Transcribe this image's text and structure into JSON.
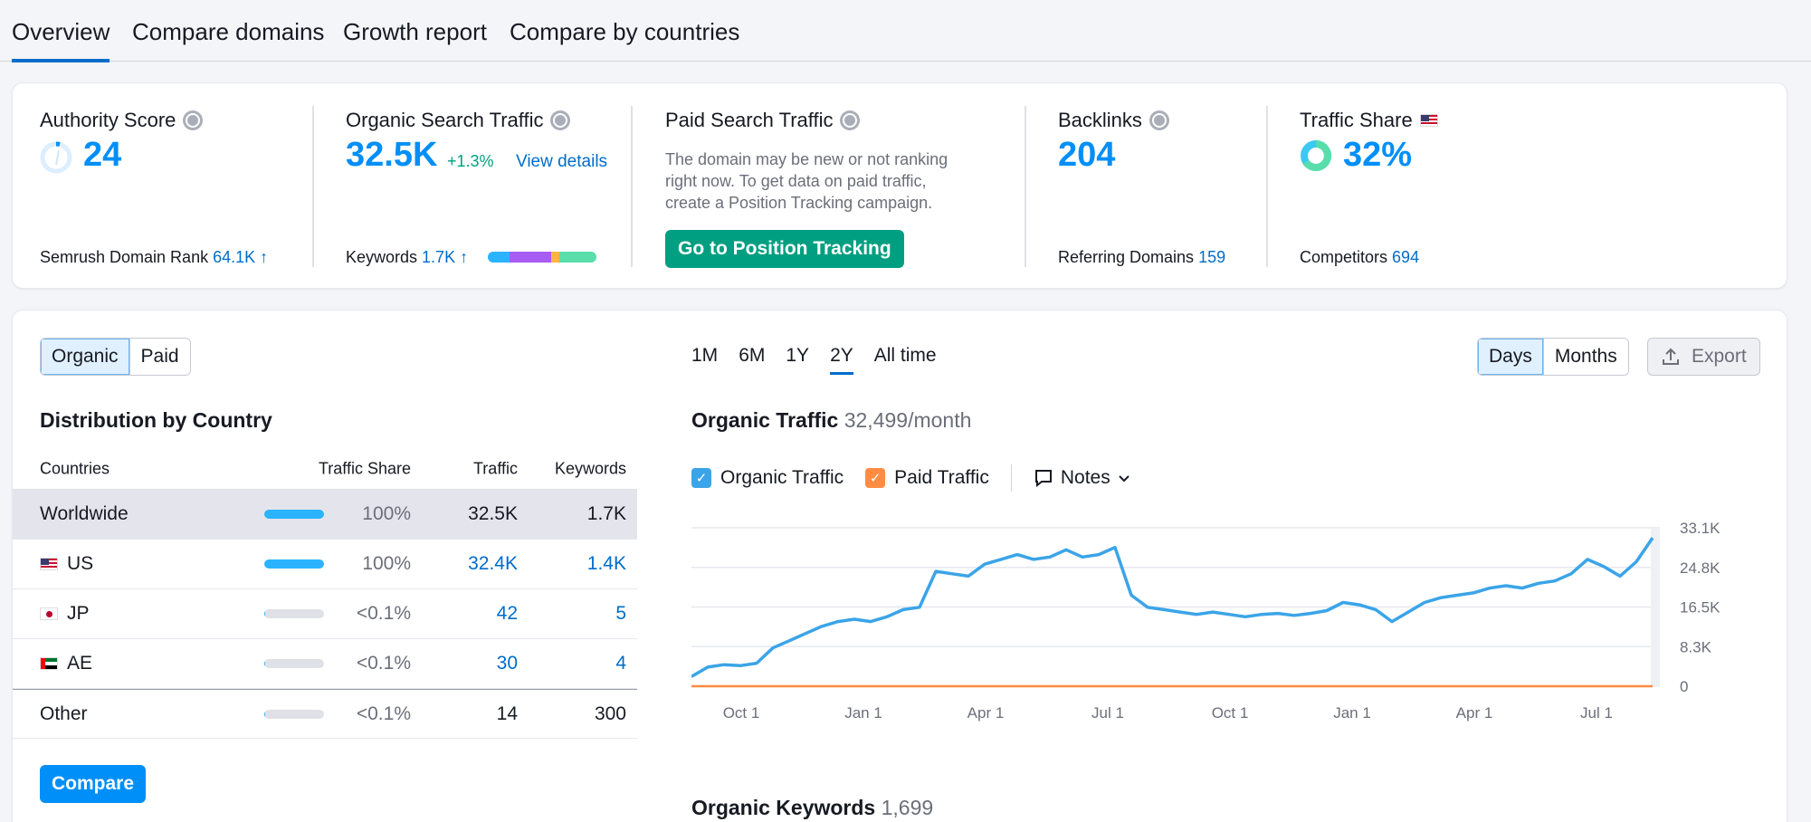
{
  "tabs": [
    "Overview",
    "Compare domains",
    "Growth report",
    "Compare by countries"
  ],
  "metrics": {
    "authority": {
      "title": "Authority Score",
      "value": "24",
      "rank_label": "Semrush Domain Rank",
      "rank_value": "64.1K ↑"
    },
    "organic": {
      "title": "Organic Search Traffic",
      "value": "32.5K",
      "change": "+1.3%",
      "link": "View details",
      "keywords_label": "Keywords",
      "keywords_value": "1.7K ↑"
    },
    "paid": {
      "title": "Paid Search Traffic",
      "description": "The domain may be new or not ranking right now. To get data on paid traffic, create a Position Tracking campaign.",
      "button": "Go to Position Tracking"
    },
    "backlinks": {
      "title": "Backlinks",
      "value": "204",
      "ref_label": "Referring Domains",
      "ref_value": "159"
    },
    "share": {
      "title": "Traffic Share",
      "value": "32%",
      "comp_label": "Competitors",
      "comp_value": "694"
    }
  },
  "toggle": {
    "organic": "Organic",
    "paid": "Paid"
  },
  "distribution": {
    "title": "Distribution by Country",
    "headers": {
      "countries": "Countries",
      "share": "Traffic Share",
      "traffic": "Traffic",
      "keywords": "Keywords"
    },
    "rows": [
      {
        "name": "Worldwide",
        "share": "100%",
        "traffic": "32.5K",
        "keywords": "1.7K",
        "fill": 1.0
      },
      {
        "name": "US",
        "share": "100%",
        "traffic": "32.4K",
        "keywords": "1.4K",
        "fill": 1.0
      },
      {
        "name": "JP",
        "share": "<0.1%",
        "traffic": "42",
        "keywords": "5",
        "fill": 0.02
      },
      {
        "name": "AE",
        "share": "<0.1%",
        "traffic": "30",
        "keywords": "4",
        "fill": 0.0
      },
      {
        "name": "Other",
        "share": "<0.1%",
        "traffic": "14",
        "keywords": "300",
        "fill": 0.0
      }
    ],
    "compare_button": "Compare"
  },
  "periods": [
    "1M",
    "6M",
    "1Y",
    "2Y",
    "All time"
  ],
  "granularity": {
    "days": "Days",
    "months": "Months"
  },
  "export": "Export",
  "organic_traffic": {
    "title": "Organic Traffic",
    "value": "32,499/month"
  },
  "legend": {
    "organic": "Organic Traffic",
    "paid": "Paid Traffic",
    "notes": "Notes"
  },
  "organic_keywords": {
    "title": "Organic Keywords",
    "value": "1,699"
  },
  "colors": {
    "accent": "#008ff8",
    "organic": "#3ba4e8",
    "paid": "#ff8c42",
    "green": "#009f81"
  },
  "chart_data": {
    "type": "line",
    "x_ticks": [
      "Oct 1",
      "Jan 1",
      "Apr 1",
      "Jul 1",
      "Oct 1",
      "Jan 1",
      "Apr 1",
      "Jul 1"
    ],
    "y_ticks": [
      "33.1K",
      "24.8K",
      "16.5K",
      "8.3K",
      "0"
    ],
    "ylim": [
      0,
      33100
    ],
    "series": [
      {
        "name": "Organic Traffic",
        "values": [
          2000,
          4000,
          4500,
          4300,
          4800,
          8000,
          9500,
          11000,
          12500,
          13500,
          14000,
          13500,
          14500,
          16000,
          16500,
          24000,
          23500,
          23000,
          25500,
          26500,
          27500,
          26500,
          27000,
          28500,
          27000,
          27500,
          29000,
          19000,
          16500,
          16000,
          15500,
          15000,
          15500,
          15000,
          14500,
          15000,
          15200,
          14800,
          15200,
          15800,
          17500,
          17000,
          16000,
          13500,
          15500,
          17500,
          18500,
          19000,
          19500,
          20500,
          21000,
          20500,
          21500,
          22000,
          23500,
          26500,
          25000,
          23000,
          26000,
          31000
        ]
      },
      {
        "name": "Paid Traffic",
        "values": [
          0,
          0,
          0,
          0,
          0,
          0,
          0,
          0,
          0,
          0,
          0,
          0,
          0,
          0,
          0,
          0,
          0,
          0,
          0,
          0,
          0,
          0,
          0,
          0,
          0,
          0,
          0,
          0,
          0,
          0,
          0,
          0,
          0,
          0,
          0,
          0,
          0,
          0,
          0,
          0,
          0,
          0,
          0,
          0,
          0,
          0,
          0,
          0,
          0,
          0,
          0,
          0,
          0,
          0,
          0,
          0,
          0,
          0,
          0,
          0
        ]
      }
    ]
  }
}
